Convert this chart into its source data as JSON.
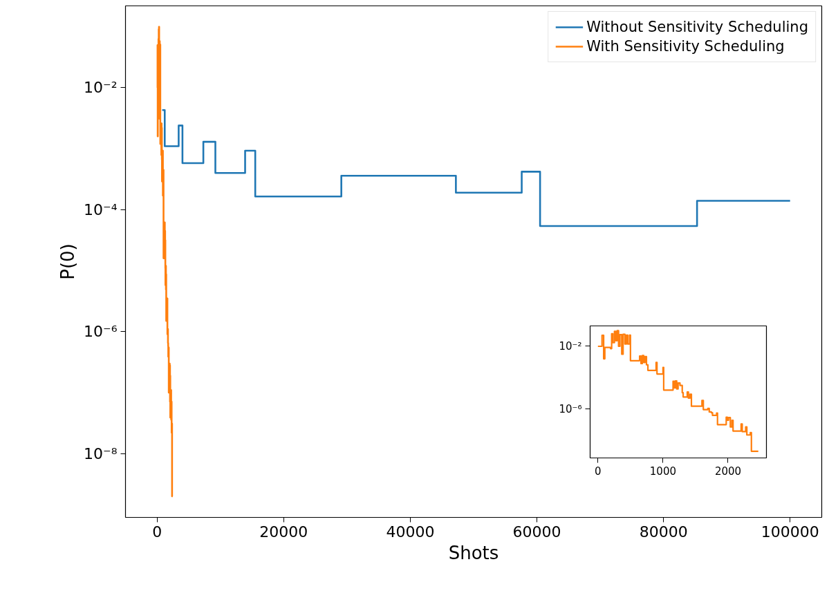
{
  "chart_data": [
    {
      "type": "step",
      "xlabel": "Shots",
      "ylabel": "P(0)",
      "log": "y",
      "legend": "top right",
      "xlim": [
        -5000,
        105000
      ],
      "xticks": [
        0,
        20000,
        40000,
        60000,
        80000,
        100000
      ],
      "ylim": [
        9e-10,
        0.22
      ],
      "yticks": [
        {
          "value": 0.01,
          "label": "10⁻²"
        },
        {
          "value": 0.0001,
          "label": "10⁻⁴"
        },
        {
          "value": 1e-06,
          "label": "10⁻⁶"
        },
        {
          "value": 1e-08,
          "label": "10⁻⁸"
        }
      ],
      "series": [
        {
          "name": "Without Sensitivity Scheduling",
          "color": "#1f77b4",
          "x": [
            800,
            1200,
            3400,
            4000,
            7300,
            9200,
            13900,
            15500,
            29100,
            47200,
            57600,
            60500,
            85300,
            100000
          ],
          "values": [
            0.0043,
            0.0011,
            0.0024,
            0.00058,
            0.0013,
            0.0004,
            0.00093,
            0.000165,
            0.00036,
            0.00019,
            0.00042,
            5.4e-05,
            0.00014,
            0.00014
          ]
        },
        {
          "name": "With Sensitivity Scheduling",
          "color": "#ff7f0e",
          "x": [
            0,
            63,
            88,
            106,
            194,
            211,
            229,
            254,
            275,
            296,
            317,
            338,
            366,
            387,
            415,
            437,
            458,
            486,
            500,
            634,
            641,
            662,
            683,
            704,
            725,
            746,
            768,
            880,
            894,
            908,
            1000,
            1011,
            1144,
            1155,
            1173,
            1190,
            1211,
            1232,
            1261,
            1296,
            1310,
            1373,
            1391,
            1415,
            1437,
            1585,
            1599,
            1620,
            1690,
            1711,
            1743,
            1761,
            1824,
            1838,
            1954,
            1972,
            1989,
            2007,
            2035,
            2060,
            2077,
            2183,
            2201,
            2218,
            2271,
            2289,
            2342,
            2359,
            2465
          ],
          "values": [
            0.01,
            0.05,
            0.0016,
            0.0085,
            0.0071,
            0.063,
            0.017,
            0.091,
            0.023,
            0.1,
            0.01,
            0.055,
            0.0031,
            0.058,
            0.014,
            0.051,
            0.014,
            0.051,
            0.0012,
            0.0012,
            0.0024,
            0.00079,
            0.0026,
            0.00093,
            0.0022,
            0.00066,
            0.00029,
            0.00029,
            0.00093,
            0.00017,
            0.00045,
            1.6e-05,
            1.6e-05,
            5.8e-05,
            2.2e-05,
            6.2e-05,
            1.9e-05,
            4.5e-05,
            3.2e-05,
            1.1e-05,
            5.8e-06,
            1.2e-05,
            4.9e-06,
            8.7e-06,
            1.5e-06,
            1.5e-06,
            3.5e-06,
            9.1e-07,
            1.1e-06,
            6.5e-07,
            5.8e-07,
            3.9e-07,
            5.5e-07,
            1e-07,
            1e-07,
            3e-07,
            1.9e-07,
            2.8e-07,
            7.1e-08,
            1.9e-07,
            3.9e-08,
            3.9e-08,
            1.1e-07,
            3.6e-08,
            7.1e-08,
            2.2e-08,
            3.1e-08,
            2e-09,
            2e-09
          ]
        }
      ]
    },
    {
      "type": "step",
      "log": "y",
      "xlim": [
        -120,
        2590
      ],
      "xticks": [
        0,
        1000,
        2000
      ],
      "ylim": [
        7.5e-10,
        0.2
      ],
      "yticks": [
        {
          "value": 0.01,
          "label": "10⁻²"
        },
        {
          "value": 1e-06,
          "label": "10⁻⁶"
        }
      ],
      "series": [
        {
          "color": "#ff7f0e",
          "x": [
            0,
            63,
            88,
            106,
            194,
            211,
            229,
            254,
            275,
            296,
            317,
            338,
            366,
            387,
            415,
            437,
            458,
            486,
            500,
            634,
            641,
            662,
            683,
            704,
            725,
            746,
            768,
            880,
            894,
            908,
            1000,
            1011,
            1144,
            1155,
            1173,
            1190,
            1211,
            1232,
            1261,
            1296,
            1310,
            1373,
            1391,
            1415,
            1437,
            1585,
            1599,
            1620,
            1690,
            1711,
            1743,
            1761,
            1824,
            1838,
            1954,
            1972,
            1989,
            2007,
            2035,
            2060,
            2077,
            2183,
            2201,
            2218,
            2271,
            2289,
            2342,
            2359,
            2465
          ],
          "values": [
            0.01,
            0.05,
            0.0016,
            0.0085,
            0.0071,
            0.063,
            0.017,
            0.091,
            0.023,
            0.1,
            0.01,
            0.055,
            0.0031,
            0.058,
            0.014,
            0.051,
            0.014,
            0.051,
            0.0012,
            0.0012,
            0.0024,
            0.00079,
            0.0026,
            0.00093,
            0.0022,
            0.00066,
            0.00029,
            0.00029,
            0.00093,
            0.00017,
            0.00045,
            1.6e-05,
            1.6e-05,
            5.8e-05,
            2.2e-05,
            6.2e-05,
            1.9e-05,
            4.5e-05,
            3.2e-05,
            1.1e-05,
            5.8e-06,
            1.2e-05,
            4.9e-06,
            8.7e-06,
            1.5e-06,
            1.5e-06,
            3.5e-06,
            9.1e-07,
            1.1e-06,
            6.5e-07,
            5.8e-07,
            3.9e-07,
            5.5e-07,
            1e-07,
            1e-07,
            3e-07,
            1.9e-07,
            2.8e-07,
            7.1e-08,
            1.9e-07,
            3.9e-08,
            3.9e-08,
            1.1e-07,
            3.6e-08,
            7.1e-08,
            2.2e-08,
            3.1e-08,
            2e-09,
            2e-09
          ]
        }
      ]
    }
  ]
}
